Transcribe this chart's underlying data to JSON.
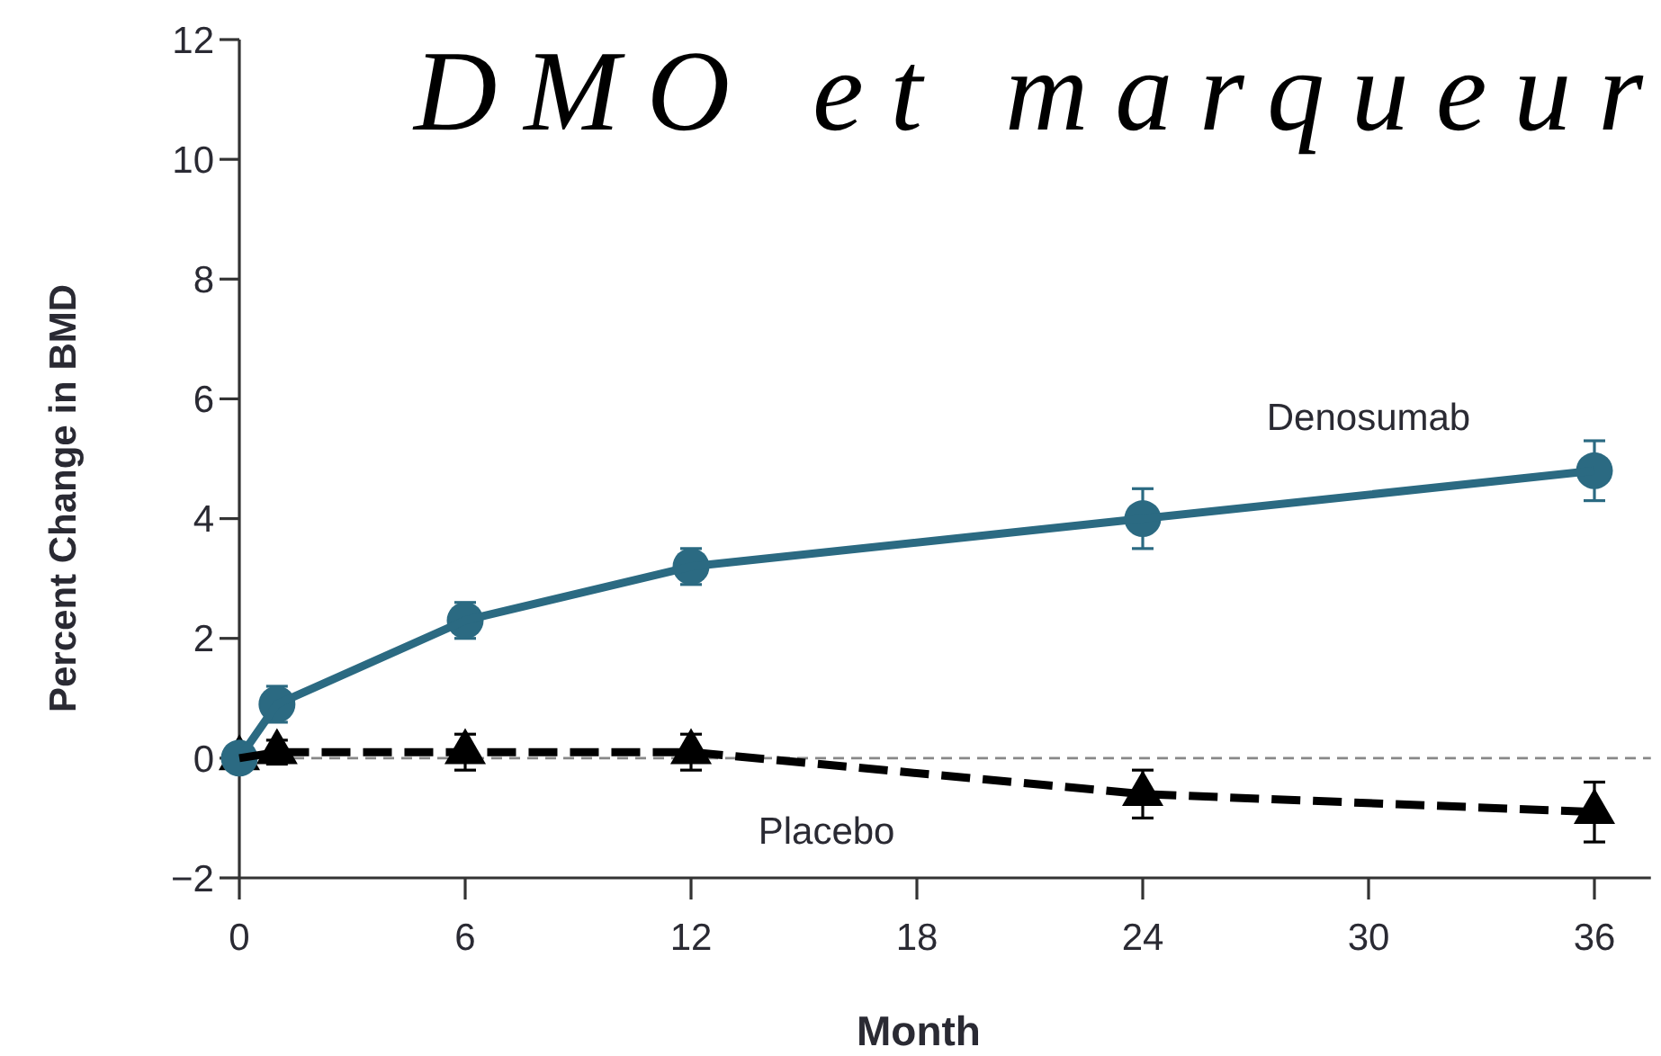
{
  "chart_data": {
    "type": "line",
    "title": "DMO et marqueur",
    "xlabel": "Month",
    "ylabel": "Percent Change in BMD",
    "x": [
      0,
      1,
      6,
      12,
      24,
      36
    ],
    "xlim": [
      0,
      37.5
    ],
    "xticks": [
      0,
      6,
      12,
      18,
      24,
      30,
      36
    ],
    "ylim": [
      -2,
      12
    ],
    "yticks": [
      -2,
      0,
      2,
      4,
      6,
      8,
      10,
      12
    ],
    "series": [
      {
        "name": "Denosumab",
        "color": "#2b6a82",
        "values": [
          0,
          0.9,
          2.3,
          3.2,
          4.0,
          4.8
        ],
        "errors": [
          null,
          0.3,
          0.3,
          0.3,
          0.5,
          0.5
        ],
        "marker": "circle",
        "line_style": "solid"
      },
      {
        "name": "Placebo",
        "color": "#000000",
        "values": [
          0,
          0.1,
          0.1,
          0.1,
          -0.6,
          -0.9
        ],
        "errors": [
          null,
          0.2,
          0.3,
          0.3,
          0.4,
          0.5
        ],
        "marker": "triangle",
        "line_style": "dashed"
      }
    ],
    "ref_lines": [
      {
        "axis": "y",
        "value": 0,
        "color": "#888888",
        "line_style": "dashed"
      }
    ]
  }
}
